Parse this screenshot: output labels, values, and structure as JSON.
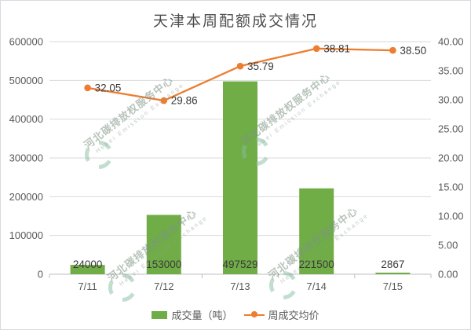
{
  "title": "天津本周配额成交情况",
  "legend": {
    "bar_label": "成交量（吨）",
    "line_label": "周成交均价"
  },
  "watermark": {
    "cn": "河北碳排放权服务中心",
    "en": "Hebei Emission Exchange"
  },
  "colors": {
    "bar": "#70AD47",
    "line": "#ED7D31",
    "grid": "#D9D9D9",
    "axis_line": "#BFBFBF",
    "axis_text": "#595959",
    "label_text": "#3A3A3A",
    "watermark": "#8FBFA4"
  },
  "chart_data": {
    "type": "bar",
    "subtype": "combo-bar-line",
    "title": "天津本周配额成交情况",
    "categories": [
      "7/11",
      "7/12",
      "7/13",
      "7/14",
      "7/15"
    ],
    "series": [
      {
        "name": "成交量（吨）",
        "type": "bar",
        "axis": "left",
        "values": [
          24000,
          153000,
          497529,
          221500,
          2867
        ],
        "labels": [
          "24000",
          "153000",
          "497529",
          "221500",
          "2867"
        ]
      },
      {
        "name": "周成交均价",
        "type": "line",
        "axis": "right",
        "values": [
          32.05,
          29.86,
          35.79,
          38.81,
          38.5
        ],
        "labels": [
          "32.05",
          "29.86",
          "35.79",
          "38.81",
          "38.50"
        ]
      }
    ],
    "left_axis": {
      "min": 0,
      "max": 600000,
      "step": 100000,
      "tick_labels": [
        "0",
        "100000",
        "200000",
        "300000",
        "400000",
        "500000",
        "600000"
      ]
    },
    "right_axis": {
      "min": 0,
      "max": 40,
      "step": 5,
      "tick_labels": [
        "0.00",
        "5.00",
        "10.00",
        "15.00",
        "20.00",
        "25.00",
        "30.00",
        "35.00",
        "40.00"
      ]
    },
    "grid": true,
    "legend_position": "bottom"
  }
}
